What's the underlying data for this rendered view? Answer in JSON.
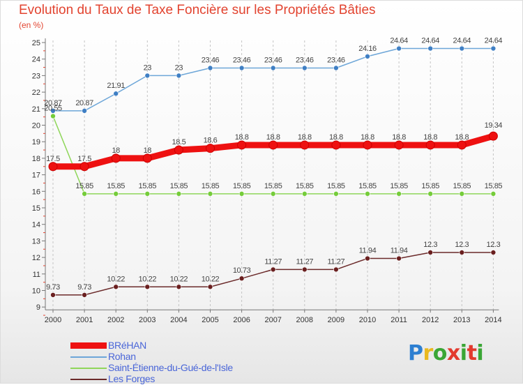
{
  "header": {
    "title": "Evolution du Taux de Taxe Foncière sur les Propriétés Bâties",
    "unit": "(en %)"
  },
  "logo": {
    "text": "Proxiti"
  },
  "chart_data": {
    "type": "line",
    "title": "Evolution du Taux de Taxe Foncière sur les Propriétés Bâties",
    "ylabel": "(en %)",
    "xlabel": "",
    "x": [
      "2000",
      "2001",
      "2002",
      "2003",
      "2004",
      "2005",
      "2006",
      "2007",
      "2008",
      "2009",
      "2010",
      "2011",
      "2012",
      "2013",
      "2014"
    ],
    "ylim": [
      9,
      25
    ],
    "yticks": [
      9,
      10,
      11,
      12,
      13,
      14,
      15,
      16,
      17,
      18,
      19,
      20,
      21,
      22,
      23,
      24,
      25
    ],
    "grid": "dashed-vertical",
    "legend_position": "bottom-left",
    "series": [
      {
        "name": "BRéHAN",
        "color": "#ee1111",
        "width": 9,
        "markerColor": "#ee1111",
        "markerRadius": 6,
        "values": [
          17.5,
          17.5,
          18,
          18,
          18.5,
          18.6,
          18.8,
          18.8,
          18.8,
          18.8,
          18.8,
          18.8,
          18.8,
          18.8,
          19.34
        ],
        "labels": [
          "17.5",
          "17.5",
          "18",
          "18",
          "18.5",
          "18.6",
          "18.8",
          "18.8",
          "18.8",
          "18.8",
          "18.8",
          "18.8",
          "18.8",
          "18.8",
          "19.34"
        ]
      },
      {
        "name": "Rohan",
        "color": "#6da6d8",
        "width": 1.5,
        "markerColor": "#3f7fc4",
        "markerRadius": 3.5,
        "values": [
          20.87,
          20.87,
          21.91,
          23,
          23,
          23.46,
          23.46,
          23.46,
          23.46,
          23.46,
          24.16,
          24.64,
          24.64,
          24.64,
          24.64
        ],
        "labels": [
          "20.87",
          "20.87",
          "21.91",
          "23",
          "23",
          "23.46",
          "23.46",
          "23.46",
          "23.46",
          "23.46",
          "24.16",
          "24.64",
          "24.64",
          "24.64",
          "24.64"
        ]
      },
      {
        "name": "Saint-Étienne-du-Gué-de-l'Isle",
        "color": "#8fd65a",
        "width": 1.5,
        "markerColor": "#75cc3a",
        "markerRadius": 3.5,
        "values": [
          20.55,
          15.85,
          15.85,
          15.85,
          15.85,
          15.85,
          15.85,
          15.85,
          15.85,
          15.85,
          15.85,
          15.85,
          15.85,
          15.85,
          15.85
        ],
        "labels": [
          "20.55",
          "15.85",
          "15.85",
          "15.85",
          "15.85",
          "15.85",
          "15.85",
          "15.85",
          "15.85",
          "15.85",
          "15.85",
          "15.85",
          "15.85",
          "15.85",
          "15.85"
        ]
      },
      {
        "name": "Les Forges",
        "color": "#6b2a2a",
        "width": 1.5,
        "markerColor": "#6a1f1f",
        "markerRadius": 3.5,
        "values": [
          9.73,
          9.73,
          10.22,
          10.22,
          10.22,
          10.22,
          10.73,
          11.27,
          11.27,
          11.27,
          11.94,
          11.94,
          12.3,
          12.3,
          12.3
        ],
        "labels": [
          "9.73",
          "9.73",
          "10.22",
          "10.22",
          "10.22",
          "10.22",
          "10.73",
          "11.27",
          "11.27",
          "11.27",
          "11.94",
          "11.94",
          "12.3",
          "12.3",
          "12.3"
        ]
      }
    ]
  }
}
